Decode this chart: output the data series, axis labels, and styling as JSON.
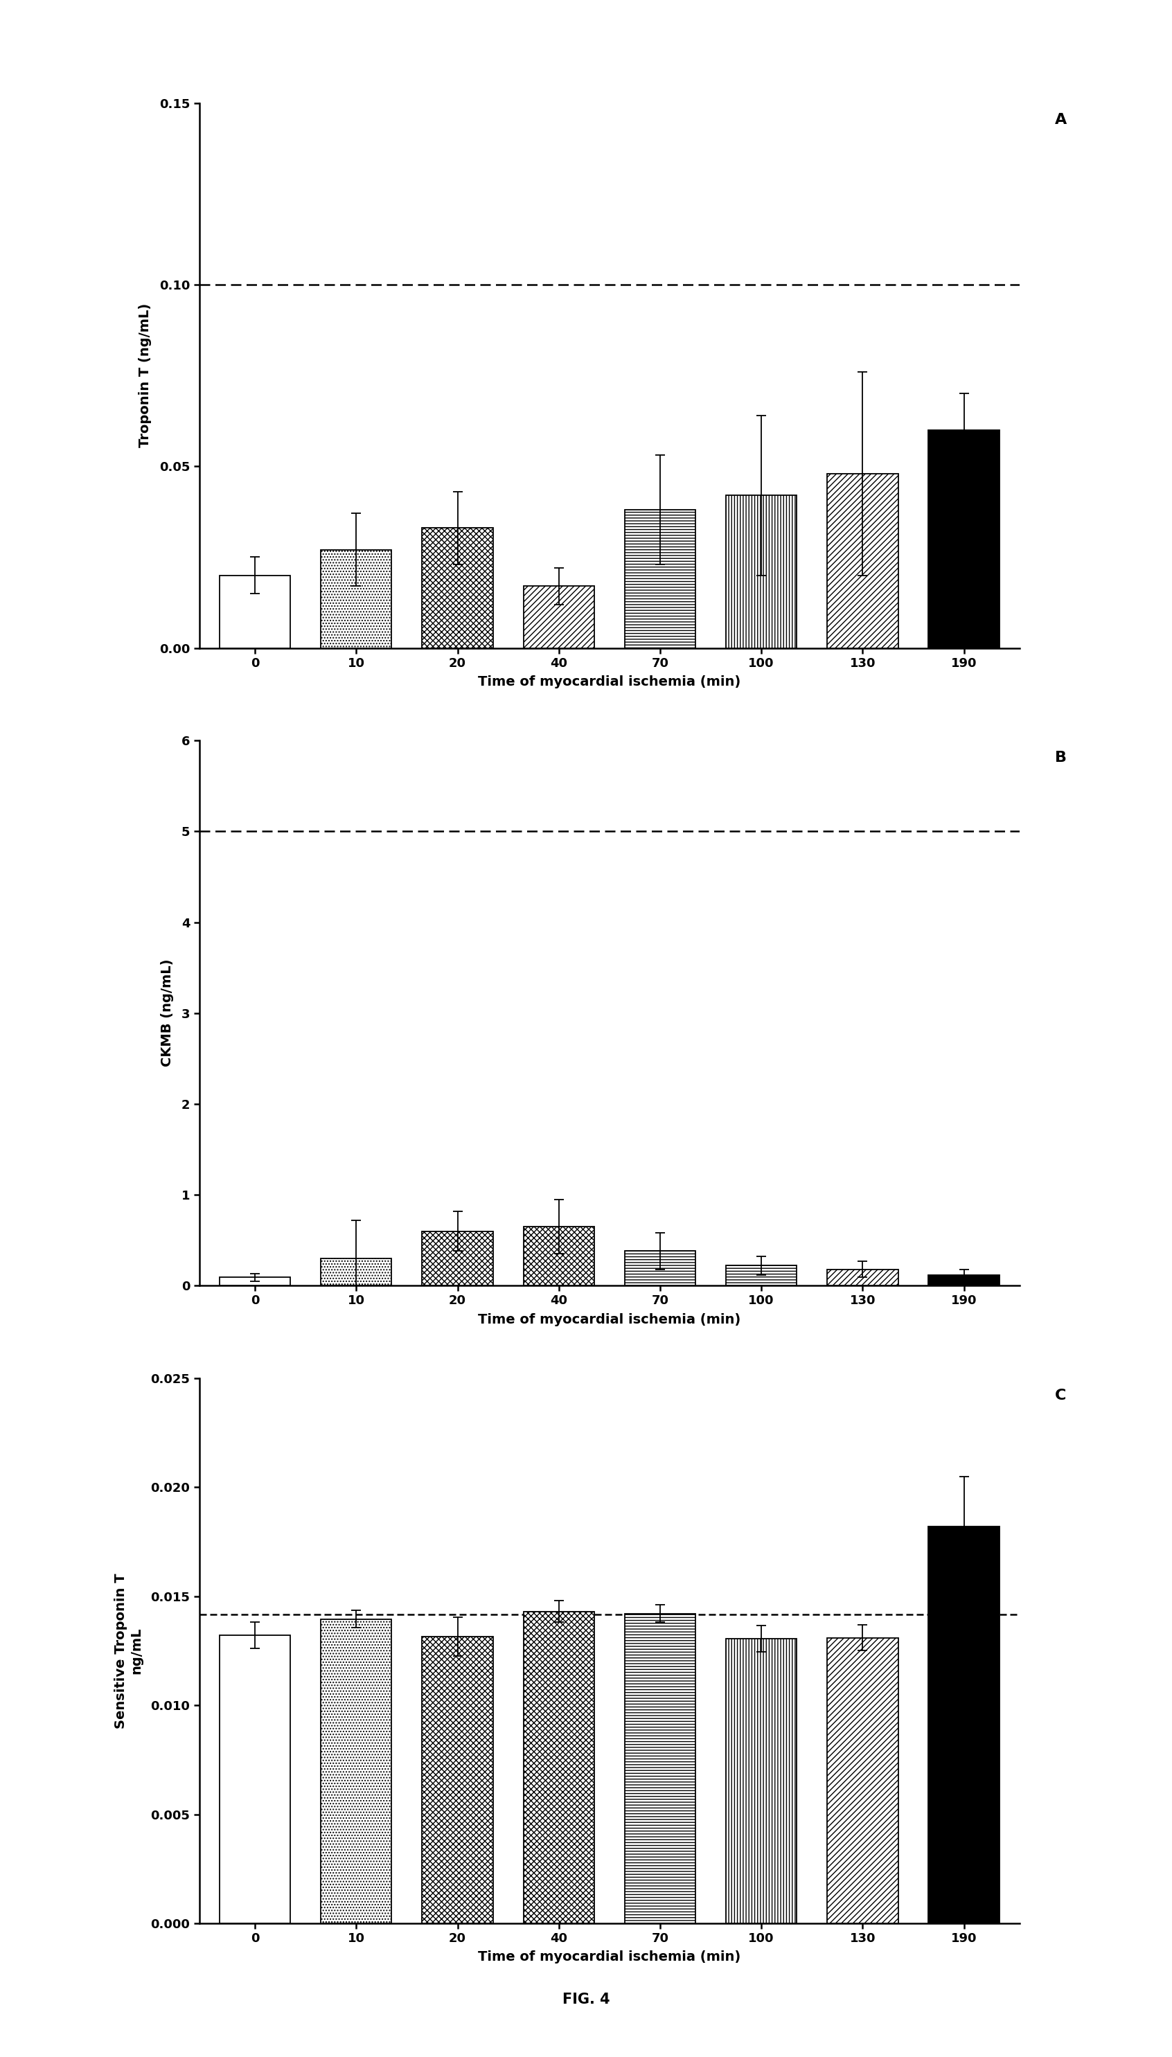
{
  "categories": [
    "0",
    "10",
    "20",
    "40",
    "70",
    "100",
    "130",
    "190"
  ],
  "panel_A": {
    "ylabel": "Troponin T (ng/mL)",
    "xlabel": "Time of myocardial ischemia (min)",
    "values": [
      0.02,
      0.027,
      0.033,
      0.017,
      0.038,
      0.042,
      0.048,
      0.06
    ],
    "errors": [
      0.005,
      0.01,
      0.01,
      0.005,
      0.015,
      0.022,
      0.028,
      0.01
    ],
    "ylim": [
      0,
      0.15
    ],
    "yticks": [
      0.0,
      0.05,
      0.1,
      0.15
    ],
    "ytick_labels": [
      "0.00",
      "0.05",
      "0.10",
      "0.15"
    ],
    "dashed_line": 0.1,
    "label": "A",
    "hatch_patterns": [
      "",
      "....",
      "xxxx",
      "////",
      "----",
      "||||",
      "////",
      ""
    ],
    "bar_facecolors": [
      "white",
      "white",
      "white",
      "white",
      "white",
      "white",
      "white",
      "black"
    ],
    "dashes": [
      6,
      3
    ]
  },
  "panel_B": {
    "ylabel": "CKMB (ng/mL)",
    "xlabel": "Time of myocardial ischemia (min)",
    "values": [
      0.09,
      0.3,
      0.6,
      0.65,
      0.38,
      0.22,
      0.18,
      0.12
    ],
    "errors": [
      0.04,
      0.42,
      0.22,
      0.3,
      0.2,
      0.1,
      0.09,
      0.06
    ],
    "ylim": [
      0,
      6
    ],
    "yticks": [
      0,
      1,
      2,
      3,
      4,
      5,
      6
    ],
    "ytick_labels": [
      "0",
      "1",
      "2",
      "3",
      "4",
      "5",
      "6"
    ],
    "dashed_line": 5.0,
    "label": "B",
    "hatch_patterns": [
      "",
      "....",
      "xxxx",
      "xxxx",
      "----",
      "----",
      "////",
      ""
    ],
    "bar_facecolors": [
      "white",
      "white",
      "white",
      "white",
      "white",
      "white",
      "white",
      "black"
    ],
    "dashes": [
      6,
      3
    ]
  },
  "panel_C": {
    "ylabel": "Sensitive Troponin T\nng/mL",
    "xlabel": "Time of myocardial ischemia (min)",
    "values": [
      0.0132,
      0.01395,
      0.01315,
      0.0143,
      0.0142,
      0.01305,
      0.0131,
      0.0182
    ],
    "errors": [
      0.0006,
      0.0004,
      0.0009,
      0.0005,
      0.0004,
      0.0006,
      0.0006,
      0.0023
    ],
    "ylim": [
      0,
      0.025
    ],
    "yticks": [
      0.0,
      0.005,
      0.01,
      0.015,
      0.02,
      0.025
    ],
    "ytick_labels": [
      "0.000",
      "0.005",
      "0.010",
      "0.015",
      "0.020",
      "0.025"
    ],
    "dashed_line": 0.01415,
    "label": "C",
    "hatch_patterns": [
      "",
      "....",
      "xxxx",
      "xxxx",
      "----",
      "||||",
      "////",
      ""
    ],
    "bar_facecolors": [
      "white",
      "white",
      "white",
      "white",
      "white",
      "white",
      "white",
      "black"
    ],
    "dashes": [
      4,
      2
    ]
  },
  "fig_label": "FIG. 4",
  "background_color": "#ffffff"
}
